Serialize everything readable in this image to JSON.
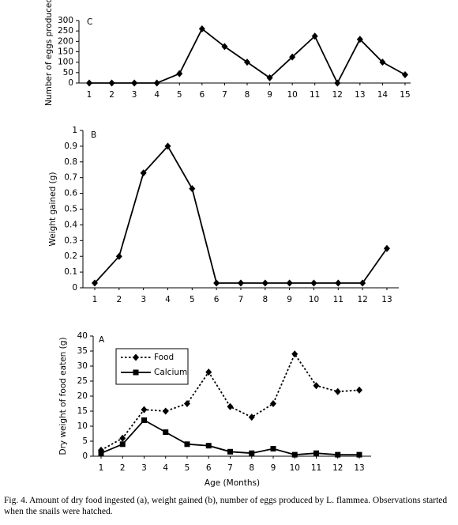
{
  "chart_data": [
    {
      "type": "line",
      "label": "C",
      "ylabel": "Number of eggs produced",
      "categories": [
        "1",
        "2",
        "3",
        "4",
        "5",
        "6",
        "7",
        "8",
        "9",
        "10",
        "11",
        "12",
        "13",
        "14",
        "15"
      ],
      "values": [
        0,
        0,
        0,
        0,
        45,
        260,
        175,
        100,
        25,
        125,
        225,
        0,
        210,
        100,
        40
      ],
      "color": "#000000",
      "marker": "diamond",
      "ylim": [
        0,
        300
      ],
      "yticks": [
        0,
        50,
        100,
        150,
        200,
        250,
        300
      ]
    },
    {
      "type": "line",
      "label": "B",
      "ylabel": "Weight gained (g)",
      "categories": [
        "1",
        "2",
        "3",
        "4",
        "5",
        "6",
        "7",
        "8",
        "9",
        "10",
        "11",
        "12",
        "13"
      ],
      "values": [
        0.03,
        0.2,
        0.73,
        0.9,
        0.63,
        0.03,
        0.03,
        0.03,
        0.03,
        0.03,
        0.03,
        0.03,
        0.25
      ],
      "color": "#000000",
      "marker": "diamond",
      "ylim": [
        0,
        1
      ],
      "yticks": [
        0,
        0.1,
        0.2,
        0.3,
        0.4,
        0.5,
        0.6,
        0.7,
        0.8,
        0.9,
        1
      ]
    },
    {
      "type": "line",
      "label": "A",
      "ylabel": "Dry weight of food eaten (g)",
      "xlabel": "Age (Months)",
      "categories": [
        "1",
        "2",
        "3",
        "4",
        "5",
        "6",
        "7",
        "8",
        "9",
        "10",
        "11",
        "12",
        "13"
      ],
      "series": [
        {
          "name": "Food",
          "color": "#000000",
          "marker": "diamond",
          "dash": "dotted",
          "values": [
            2,
            6,
            15.5,
            15,
            17.5,
            28,
            16.5,
            13,
            17.5,
            34,
            23.5,
            21.5,
            22
          ]
        },
        {
          "name": "Calcium",
          "color": "#000000",
          "marker": "square",
          "dash": "solid",
          "values": [
            1,
            4,
            12,
            8,
            4,
            3.5,
            1.5,
            1,
            2.5,
            0.5,
            1,
            0.5,
            0.5
          ]
        }
      ],
      "ylim": [
        0,
        40
      ],
      "yticks": [
        0,
        5,
        10,
        15,
        20,
        25,
        30,
        35,
        40
      ],
      "legend": "upper-left"
    }
  ],
  "caption": "Fig. 4. Amount of dry food ingested (a), weight gained (b), number of eggs produced by L. flammea. Observations started when the snails were hatched."
}
